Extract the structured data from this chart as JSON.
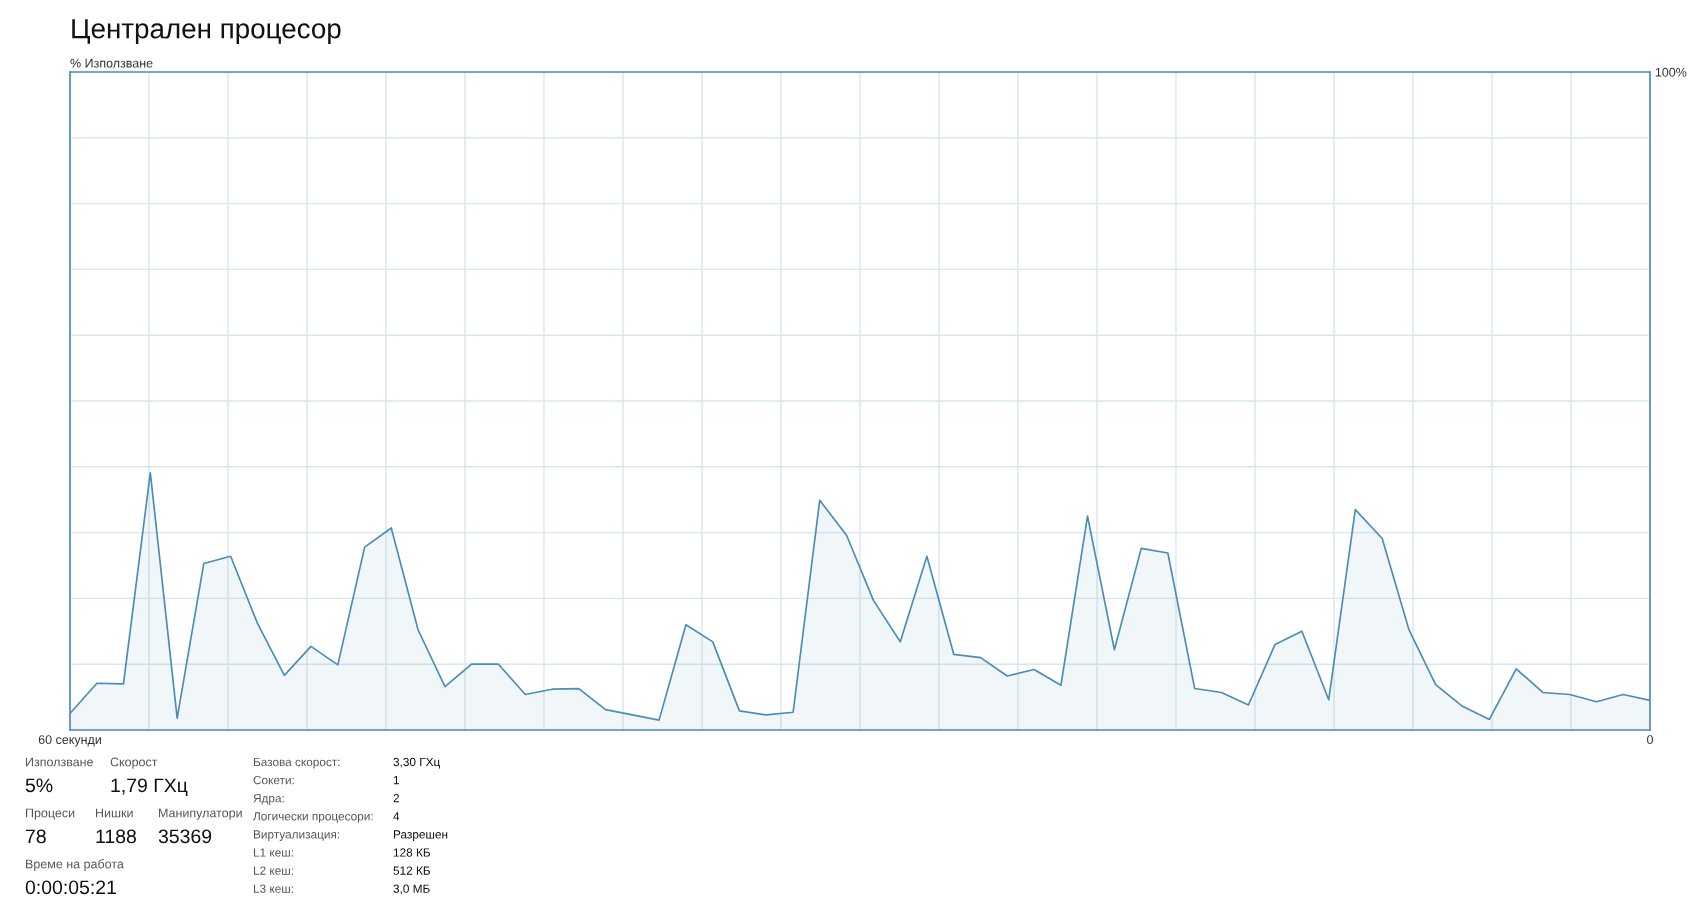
{
  "chart_data": {
    "type": "area",
    "title": "Централен процесор",
    "ylabel": "% Използване",
    "x": [
      60.0,
      58.98,
      57.97,
      56.95,
      55.93,
      54.92,
      53.9,
      52.88,
      51.86,
      50.85,
      49.83,
      48.81,
      47.8,
      46.78,
      45.76,
      44.75,
      43.73,
      42.71,
      41.69,
      40.68,
      39.66,
      38.64,
      37.63,
      36.61,
      35.59,
      34.58,
      33.56,
      32.54,
      31.53,
      30.51,
      29.49,
      28.47,
      27.46,
      26.44,
      25.42,
      24.41,
      23.39,
      22.37,
      21.36,
      20.34,
      19.32,
      18.31,
      17.29,
      16.27,
      15.25,
      14.24,
      13.22,
      12.2,
      11.19,
      10.17,
      9.15,
      8.14,
      7.12,
      6.1,
      5.08,
      4.07,
      3.05,
      2.03,
      1.02,
      0.0
    ],
    "series": [
      {
        "color": "#4b8db8",
        "values": [
          2.5,
          7.1,
          7.0,
          39.1,
          1.8,
          25.3,
          26.4,
          16.2,
          8.3,
          12.7,
          9.9,
          27.8,
          30.7,
          15.2,
          6.6,
          10.0,
          10.0,
          5.4,
          6.2,
          6.3,
          3.1,
          2.3,
          1.5,
          16.0,
          13.4,
          2.9,
          2.3,
          2.7,
          34.9,
          29.6,
          19.7,
          13.4,
          26.4,
          11.5,
          11.0,
          8.2,
          9.2,
          6.8,
          32.5,
          12.2,
          27.6,
          26.9,
          6.3,
          5.7,
          3.8,
          13.0,
          15.0,
          4.6,
          33.5,
          29.1,
          15.2,
          6.9,
          3.6,
          1.6,
          9.3,
          5.7,
          5.4,
          4.3,
          5.4,
          4.5
        ]
      }
    ],
    "xlim": [
      60,
      0
    ],
    "xticks": [
      {
        "value": 60,
        "label": "60 секунди"
      },
      {
        "value": 57,
        "label": null
      },
      {
        "value": 54,
        "label": null
      },
      {
        "value": 51,
        "label": null
      },
      {
        "value": 48,
        "label": null
      },
      {
        "value": 45,
        "label": null
      },
      {
        "value": 42,
        "label": null
      },
      {
        "value": 39,
        "label": null
      },
      {
        "value": 36,
        "label": null
      },
      {
        "value": 33,
        "label": null
      },
      {
        "value": 30,
        "label": null
      },
      {
        "value": 27,
        "label": null
      },
      {
        "value": 24,
        "label": null
      },
      {
        "value": 21,
        "label": null
      },
      {
        "value": 18,
        "label": null
      },
      {
        "value": 15,
        "label": null
      },
      {
        "value": 12,
        "label": null
      },
      {
        "value": 9,
        "label": null
      },
      {
        "value": 6,
        "label": null
      },
      {
        "value": 3,
        "label": null
      },
      {
        "value": 0,
        "label": "0"
      }
    ],
    "ylim": [
      0,
      100
    ],
    "yticks": [
      {
        "value": 0,
        "label": null
      },
      {
        "value": 10,
        "label": null
      },
      {
        "value": 20,
        "label": null
      },
      {
        "value": 30,
        "label": null
      },
      {
        "value": 40,
        "label": null
      },
      {
        "value": 50,
        "label": null
      },
      {
        "value": 60,
        "label": null
      },
      {
        "value": 70,
        "label": null
      },
      {
        "value": 80,
        "label": null
      },
      {
        "value": 90,
        "label": null
      },
      {
        "value": 100,
        "label": "100%"
      }
    ],
    "grid": true,
    "legend": false,
    "marker": "none",
    "line_style": "solid",
    "annotations": [
      "Използване",
      "5%",
      "Скорост",
      "1,79 ГХц",
      "Процеси",
      "78",
      "Нишки",
      "1188",
      "Манипулатори",
      "35369",
      "Време на работа",
      "0:00:05:21",
      "Базова скорост:",
      "3,30 ГХц",
      "Сокети:",
      "1",
      "Ядра:",
      "2",
      "Логически процесори:",
      "4",
      "Виртуализация:",
      "Разрешен",
      "L1 кеш:",
      "128 КБ",
      "L2 кеш:",
      "512 КБ",
      "L3 кеш:",
      "3,0 МБ"
    ]
  }
}
